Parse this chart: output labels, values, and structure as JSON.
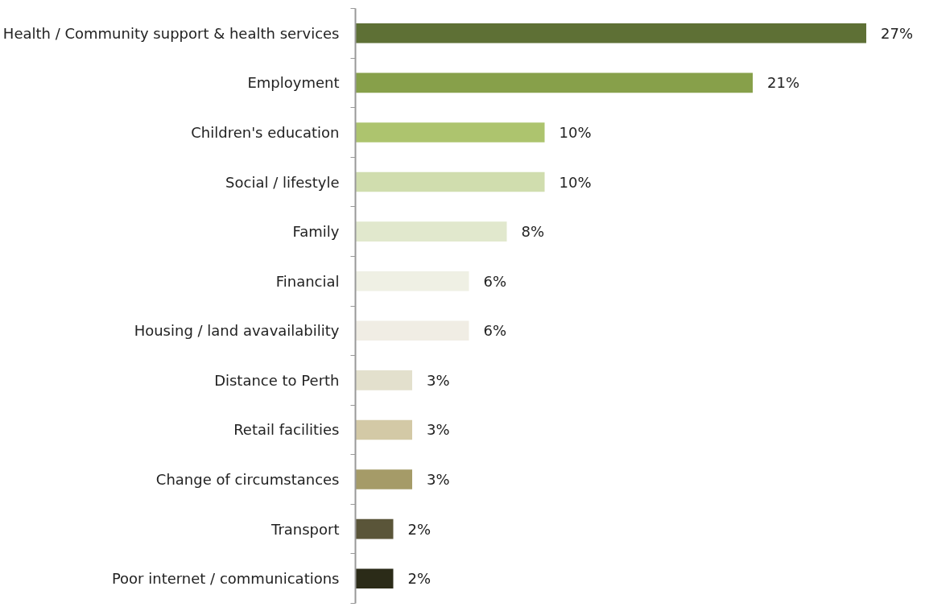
{
  "chart_data": {
    "type": "bar",
    "orientation": "horizontal",
    "categories": [
      "Health / Community support & health services",
      "Employment",
      "Children's education",
      "Social / lifestyle",
      "Family",
      "Financial",
      "Housing / land avavailability",
      "Distance to Perth",
      "Retail facilities",
      "Change of circumstances",
      "Transport",
      "Poor internet / communications"
    ],
    "values": [
      27,
      21,
      10,
      10,
      8,
      6,
      6,
      3,
      3,
      3,
      2,
      2
    ],
    "value_labels": [
      "27%",
      "21%",
      "10%",
      "10%",
      "8%",
      "6%",
      "6%",
      "3%",
      "3%",
      "3%",
      "2%",
      "2%"
    ],
    "colors": [
      "#5e7035",
      "#87a04a",
      "#adc46e",
      "#d0ddae",
      "#e1e8cd",
      "#eff0e4",
      "#f0ede4",
      "#e3e0cd",
      "#d3c9a6",
      "#a59b68",
      "#5a5539",
      "#2b2b18"
    ],
    "grid": false
  }
}
